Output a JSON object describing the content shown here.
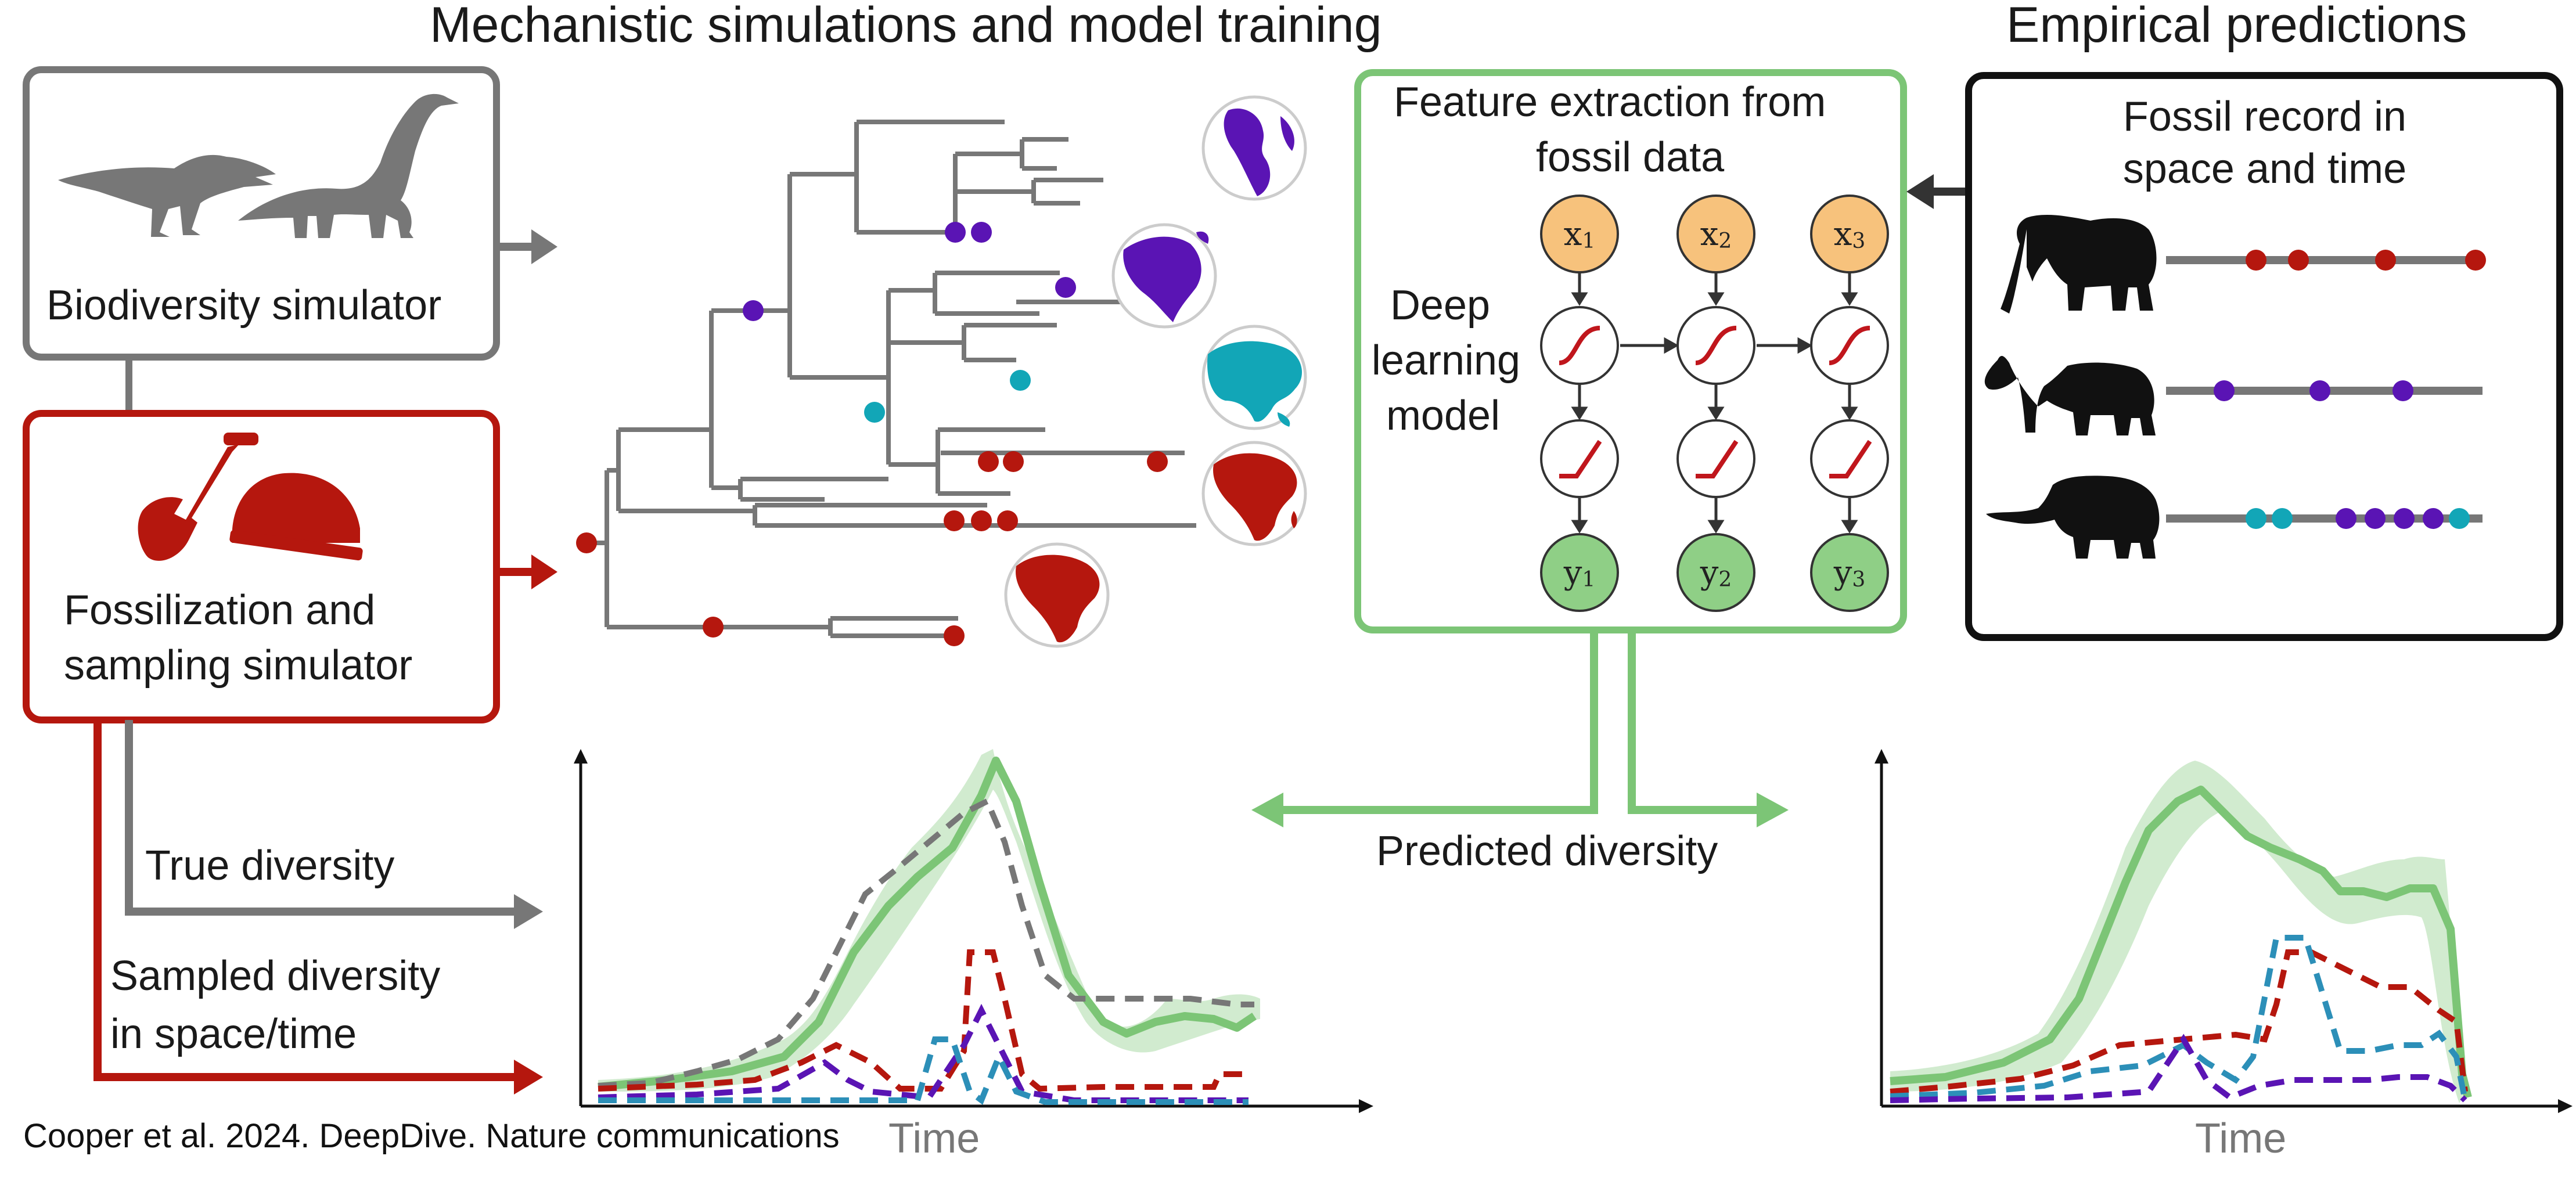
{
  "headings": {
    "left": "Mechanistic simulations and model training",
    "right": "Empirical predictions"
  },
  "boxes": {
    "biodiversity": "Biodiversity simulator",
    "fossilization_line1": "Fossilization and",
    "fossilization_line2": "sampling simulator",
    "feature_line1": "Feature extraction from",
    "feature_line2": "fossil data",
    "dl_line1": "Deep",
    "dl_line2": "learning",
    "dl_line3": "model",
    "fossil_line1": "Fossil record in",
    "fossil_line2": "space and time"
  },
  "labels": {
    "true_diversity": "True diversity",
    "sampled_line1": "Sampled diversity",
    "sampled_line2": "in space/time",
    "predicted": "Predicted diversity",
    "time_left": "Time",
    "time_right": "Time"
  },
  "network": {
    "inputs": [
      "x",
      "x",
      "x"
    ],
    "outputs": [
      "y",
      "y",
      "y"
    ],
    "subscripts": [
      "1",
      "2",
      "3"
    ]
  },
  "credit": "Cooper et al. 2024. DeepDive. Nature communications",
  "colors": {
    "grey": "#777777",
    "red": "#b5170e",
    "purple": "#5a14b4",
    "teal": "#12a6b7",
    "green": "#7cc576"
  }
}
